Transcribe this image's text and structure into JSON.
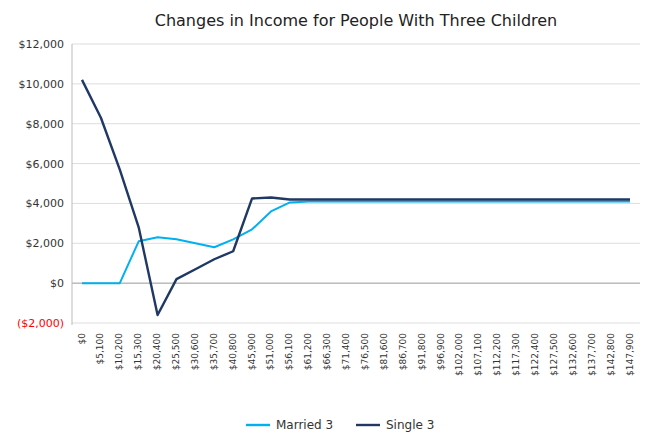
{
  "chart_data": {
    "type": "line",
    "title": "Changes in Income for People With Three Children",
    "categories": [
      "$0",
      "$5,100",
      "$10,200",
      "$15,300",
      "$20,400",
      "$25,500",
      "$30,600",
      "$35,700",
      "$40,800",
      "$45,900",
      "$51,000",
      "$56,100",
      "$61,200",
      "$66,300",
      "$71,400",
      "$76,500",
      "$81,600",
      "$86,700",
      "$91,800",
      "$96,900",
      "$102,000",
      "$107,100",
      "$112,200",
      "$117,300",
      "$122,400",
      "$127,500",
      "$132,600",
      "$137,700",
      "$142,800",
      "$147,900"
    ],
    "series": [
      {
        "name": "Married 3",
        "color": "#00b0f0",
        "values": [
          0,
          0,
          0,
          2100,
          2300,
          2200,
          2000,
          1800,
          2200,
          2700,
          3600,
          4050,
          4100,
          4100,
          4100,
          4100,
          4100,
          4100,
          4100,
          4100,
          4100,
          4100,
          4100,
          4100,
          4100,
          4100,
          4100,
          4100,
          4100,
          4100
        ]
      },
      {
        "name": "Single 3",
        "color": "#1f3864",
        "values": [
          10200,
          8300,
          5700,
          2800,
          -1600,
          200,
          700,
          1200,
          1600,
          4250,
          4300,
          4200,
          4200,
          4200,
          4200,
          4200,
          4200,
          4200,
          4200,
          4200,
          4200,
          4200,
          4200,
          4200,
          4200,
          4200,
          4200,
          4200,
          4200,
          4200
        ]
      }
    ],
    "ylim": [
      -2100,
      12000
    ],
    "yticks": [
      {
        "value": -2000,
        "label": "($2,000)"
      },
      {
        "value": 0,
        "label": "$0"
      },
      {
        "value": 2000,
        "label": "$2,000"
      },
      {
        "value": 4000,
        "label": "$4,000"
      },
      {
        "value": 6000,
        "label": "$6,000"
      },
      {
        "value": 8000,
        "label": "$8,000"
      },
      {
        "value": 10000,
        "label": "$10,000"
      },
      {
        "value": 12000,
        "label": "$12,000"
      }
    ],
    "grid": true,
    "legend": "bottom"
  }
}
